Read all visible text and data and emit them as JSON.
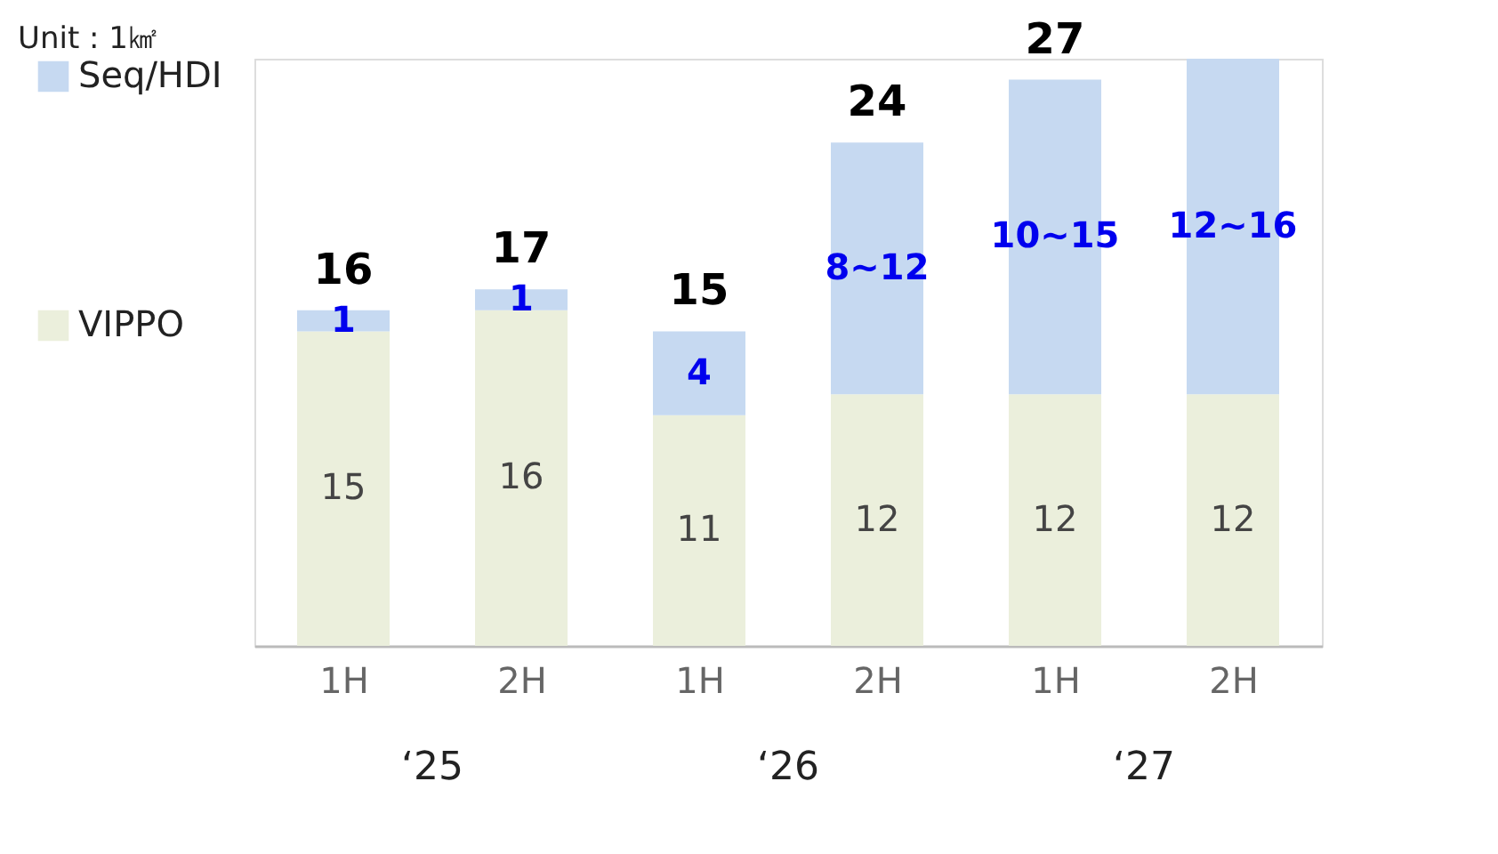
{
  "chart_data": {
    "type": "bar",
    "stacked": true,
    "subtitle": "Unit : 1㎢",
    "categories": [
      "1H",
      "2H",
      "1H",
      "2H",
      "1H",
      "2H"
    ],
    "series": [
      {
        "name": "VIPPO",
        "color": "#ebefdc",
        "values": [
          15,
          16,
          11,
          12,
          12,
          12
        ],
        "value_labels": [
          "15",
          "16",
          "11",
          "12",
          "12",
          "12"
        ]
      },
      {
        "name": "Seq/HDI",
        "color": "#c6d9f1",
        "values": [
          1,
          1,
          4,
          12,
          15,
          16
        ],
        "value_labels": [
          "1",
          "1",
          "4",
          "8~12",
          "10~15",
          "12~16"
        ]
      }
    ],
    "totals": [
      "16",
      "17",
      "15",
      "24",
      "27",
      null
    ],
    "annotations": [
      "‘25",
      "‘26",
      "‘27"
    ],
    "ylim": [
      0,
      28
    ],
    "grid": false,
    "legend": "left"
  }
}
